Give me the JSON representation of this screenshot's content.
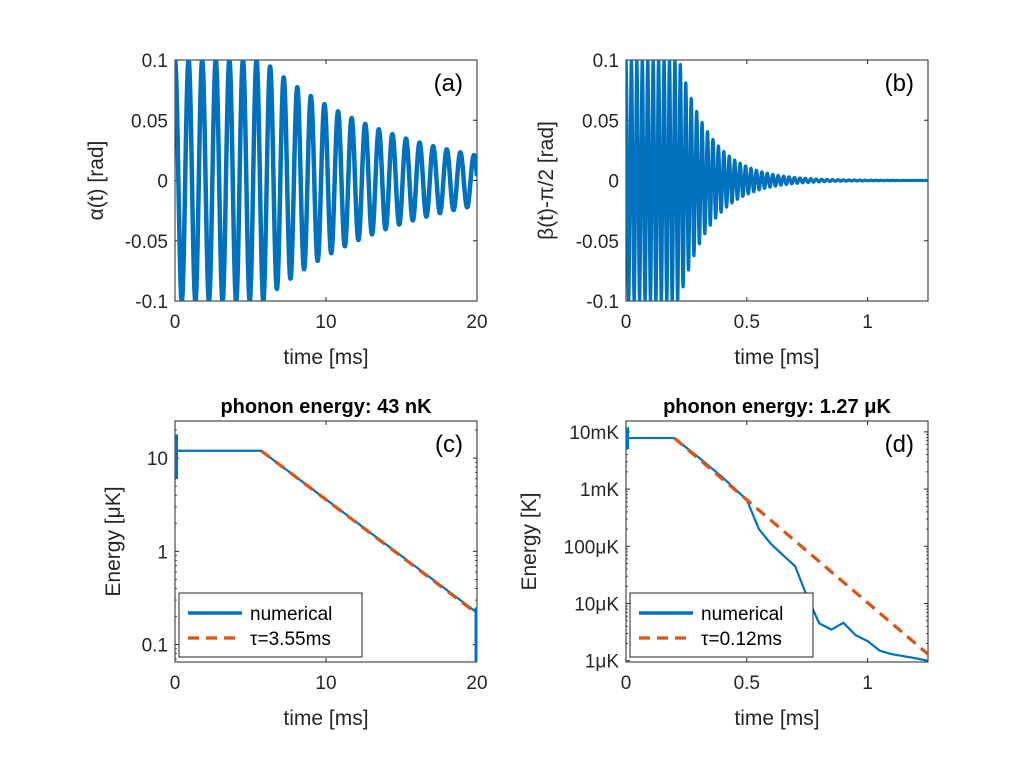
{
  "chart_data": [
    {
      "id": "a",
      "type": "line",
      "panel_label": "(a)",
      "title": "",
      "xlabel": "time [ms]",
      "ylabel": "α(t) [rad]",
      "xlim": [
        0,
        20
      ],
      "ylim": [
        -0.1,
        0.1
      ],
      "yscale": "linear",
      "xticks": [
        0,
        10,
        20
      ],
      "xtick_labels": [
        "0",
        "10",
        "20"
      ],
      "yticks": [
        -0.1,
        -0.05,
        0,
        0.05,
        0.1
      ],
      "ytick_labels": [
        "-0.1",
        "-0.05",
        "0",
        "0.05",
        "0.1"
      ],
      "series": [
        {
          "name": "α(t)",
          "color": "#0072BD",
          "model": {
            "kind": "damped_cosine",
            "amplitude": 0.1,
            "hold_until": 5.8,
            "tau": 9.0,
            "period": 0.9,
            "x_start": 0,
            "x_end": 20
          }
        }
      ]
    },
    {
      "id": "b",
      "type": "line",
      "panel_label": "(b)",
      "title": "",
      "xlabel": "time [ms]",
      "ylabel": "β(t)-π/2 [rad]",
      "xlim": [
        0,
        1.25
      ],
      "ylim": [
        -0.1,
        0.1
      ],
      "yscale": "linear",
      "xticks": [
        0,
        0.5,
        1
      ],
      "xtick_labels": [
        "0",
        "0.5",
        "1"
      ],
      "yticks": [
        -0.1,
        -0.05,
        0,
        0.05,
        0.1
      ],
      "ytick_labels": [
        "-0.1",
        "-0.05",
        "0",
        "0.05",
        "0.1"
      ],
      "series": [
        {
          "name": "β(t)-π/2",
          "color": "#0072BD",
          "model": {
            "kind": "damped_cosine",
            "amplitude": 0.1,
            "hold_until": 0.22,
            "tau": 0.13,
            "period": 0.0225,
            "x_start": 0,
            "x_end": 1.25
          }
        }
      ]
    },
    {
      "id": "c",
      "type": "line",
      "panel_label": "(c)",
      "title": "phonon energy: 43 nK",
      "xlabel": "time [ms]",
      "ylabel": "Energy [μK]",
      "xlim": [
        0,
        20
      ],
      "ylim": [
        0.065,
        25
      ],
      "yscale": "log",
      "xticks": [
        0,
        10,
        20
      ],
      "xtick_labels": [
        "0",
        "10",
        "20"
      ],
      "yticks": [
        0.1,
        1,
        10
      ],
      "ytick_labels": [
        "0.1",
        "1",
        "10"
      ],
      "legend_position": "bottom-left",
      "series": [
        {
          "name": "numerical",
          "color": "#0072BD",
          "style": "solid",
          "x": [
            0,
            0.15,
            5.7,
            20
          ],
          "y": [
            12,
            12,
            12,
            0.22
          ]
        },
        {
          "name": "τ=3.55ms",
          "color": "#D95319",
          "style": "dashed",
          "x": [
            5.7,
            20
          ],
          "y": [
            12,
            0.215
          ]
        }
      ]
    },
    {
      "id": "d",
      "type": "line",
      "panel_label": "(d)",
      "title": "phonon energy: 1.27 μK",
      "xlabel": "time [ms]",
      "ylabel": "Energy [K]",
      "xlim": [
        0,
        1.25
      ],
      "ylim": [
        9.5e-07,
        0.0155
      ],
      "yscale": "log",
      "xticks": [
        0,
        0.5,
        1
      ],
      "xtick_labels": [
        "0",
        "0.5",
        "1"
      ],
      "yticks": [
        1e-06,
        1e-05,
        0.0001,
        0.001,
        0.01
      ],
      "ytick_labels": [
        "1μK",
        "10μK",
        "100μK",
        "1mK",
        "10mK"
      ],
      "legend_position": "bottom-left",
      "series": [
        {
          "name": "numerical",
          "color": "#0072BD",
          "style": "solid",
          "x": [
            0,
            0.2,
            0.3,
            0.4,
            0.5,
            0.55,
            0.6,
            0.65,
            0.7,
            0.75,
            0.8,
            0.85,
            0.9,
            0.95,
            1.0,
            1.05,
            1.1,
            1.15,
            1.2,
            1.25
          ],
          "y": [
            0.0078,
            0.0078,
            0.0036,
            0.0016,
            0.00065,
            0.0002,
            0.00011,
            7e-05,
            4.5e-05,
            1.3e-05,
            4.5e-06,
            3.5e-06,
            4.6e-06,
            2.8e-06,
            2.2e-06,
            1.5e-06,
            1.3e-06,
            1.2e-06,
            1.1e-06,
            1e-06
          ]
        },
        {
          "name": "τ=0.12ms",
          "color": "#D95319",
          "style": "dashed",
          "x": [
            0.2,
            1.25
          ],
          "y": [
            0.0078,
            1.3e-06
          ]
        }
      ]
    }
  ]
}
